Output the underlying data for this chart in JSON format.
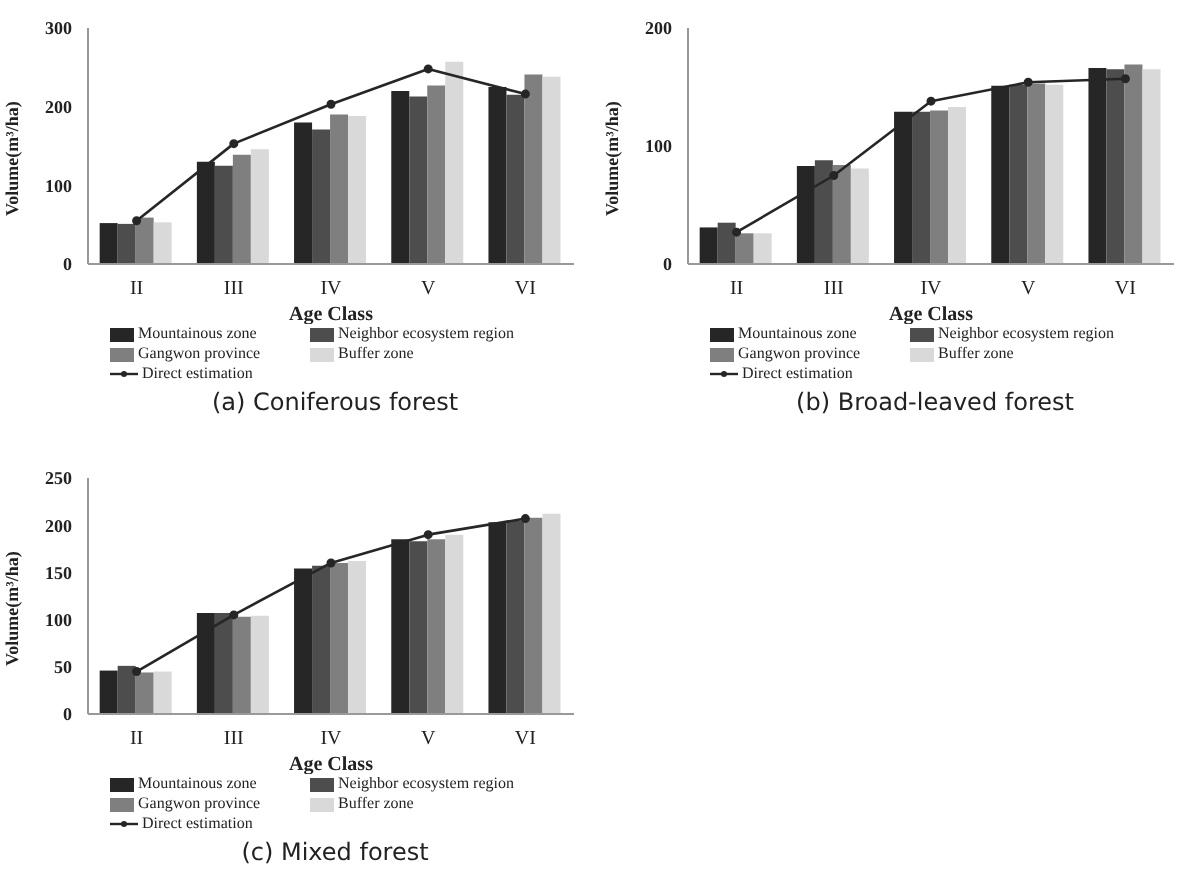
{
  "chart_data": [
    {
      "type": "bar",
      "title": "(a) Coniferous forest",
      "xlabel": "Age Class",
      "ylabel": "Volume(m³/ha)",
      "categories": [
        "II",
        "III",
        "IV",
        "V",
        "VI"
      ],
      "ylim": [
        0,
        300
      ],
      "yticks": [
        0,
        100,
        200,
        300
      ],
      "grid": false,
      "legend": "bottom",
      "marker": "circle",
      "series": [
        {
          "name": "Mountainous zone",
          "color": "#262626",
          "values": [
            52,
            130,
            180,
            220,
            225
          ]
        },
        {
          "name": "Neighbor ecosystem region",
          "color": "#4d4d4d",
          "values": [
            51,
            125,
            171,
            213,
            215
          ]
        },
        {
          "name": "Gangwon province",
          "color": "#7f7f7f",
          "values": [
            59,
            139,
            190,
            227,
            241
          ]
        },
        {
          "name": "Buffer zone",
          "color": "#d9d9d9",
          "values": [
            53,
            146,
            188,
            257,
            238
          ]
        },
        {
          "name": "Direct estimation",
          "type": "line",
          "color": "#262626",
          "values": [
            55,
            153,
            203,
            248,
            216
          ]
        }
      ]
    },
    {
      "type": "bar",
      "title": "(b) Broad-leaved forest",
      "xlabel": "Age Class",
      "ylabel": "Volume(m³/ha)",
      "categories": [
        "II",
        "III",
        "IV",
        "V",
        "VI"
      ],
      "ylim": [
        0,
        200
      ],
      "yticks": [
        0,
        100,
        200
      ],
      "grid": false,
      "legend": "bottom",
      "marker": "circle",
      "series": [
        {
          "name": "Mountainous zone",
          "color": "#262626",
          "values": [
            31,
            83,
            129,
            151,
            166
          ]
        },
        {
          "name": "Neighbor ecosystem region",
          "color": "#4d4d4d",
          "values": [
            35,
            88,
            129,
            152,
            165
          ]
        },
        {
          "name": "Gangwon province",
          "color": "#7f7f7f",
          "values": [
            26,
            84,
            130,
            153,
            169
          ]
        },
        {
          "name": "Buffer zone",
          "color": "#d9d9d9",
          "values": [
            26,
            81,
            133,
            152,
            165
          ]
        },
        {
          "name": "Direct estimation",
          "type": "line",
          "color": "#262626",
          "values": [
            27,
            75,
            138,
            154,
            157
          ]
        }
      ]
    },
    {
      "type": "bar",
      "title": "(c) Mixed forest",
      "xlabel": "Age Class",
      "ylabel": "Volume(m³/ha)",
      "categories": [
        "II",
        "III",
        "IV",
        "V",
        "VI"
      ],
      "ylim": [
        0,
        250
      ],
      "yticks": [
        0,
        50,
        100,
        150,
        200,
        250
      ],
      "grid": false,
      "legend": "bottom",
      "marker": "circle",
      "series": [
        {
          "name": "Mountainous zone",
          "color": "#262626",
          "values": [
            46,
            107,
            154,
            185,
            203
          ]
        },
        {
          "name": "Neighbor ecosystem region",
          "color": "#4d4d4d",
          "values": [
            51,
            107,
            157,
            183,
            205
          ]
        },
        {
          "name": "Gangwon province",
          "color": "#7f7f7f",
          "values": [
            44,
            103,
            160,
            185,
            208
          ]
        },
        {
          "name": "Buffer zone",
          "color": "#d9d9d9",
          "values": [
            45,
            104,
            162,
            190,
            212
          ]
        },
        {
          "name": "Direct estimation",
          "type": "line",
          "color": "#262626",
          "values": [
            45,
            105,
            160,
            190,
            207
          ]
        }
      ]
    }
  ]
}
